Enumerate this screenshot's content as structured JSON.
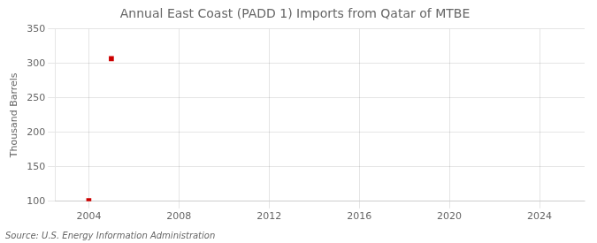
{
  "chart_data": {
    "type": "scatter",
    "title": "Annual East Coast (PADD 1) Imports from Qatar of MTBE",
    "ylabel": "Thousand Barrels",
    "source": "Source: U.S. Energy Information Administration",
    "x": [
      2004,
      2005
    ],
    "values": [
      101,
      307
    ],
    "color": "#cc0000",
    "marker": "square",
    "xlim": [
      2002.5,
      2026
    ],
    "xticks": [
      2004,
      2008,
      2012,
      2016,
      2020,
      2024
    ],
    "ylim": [
      100,
      350
    ],
    "yticks": [
      100,
      150,
      200,
      250,
      300,
      350
    ],
    "grid": true
  }
}
